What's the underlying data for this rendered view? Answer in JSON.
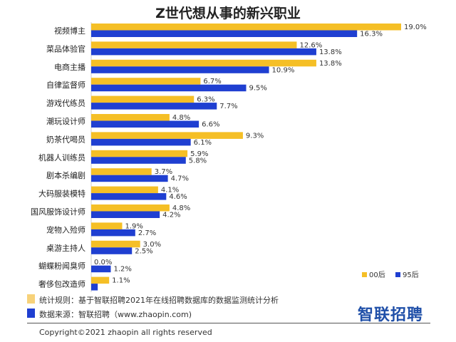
{
  "chart_data": {
    "type": "bar",
    "orientation": "horizontal",
    "title": "Z世代想从事的新兴职业",
    "categories": [
      "视频博主",
      "菜品体验官",
      "电商主播",
      "自律监督师",
      "游戏代练员",
      "潮玩设计师",
      "奶茶代喝员",
      "机器人训练员",
      "剧本杀编剧",
      "大码服装模特",
      "国风服饰设计师",
      "宠物入殓师",
      "桌游主持人",
      "蝴蝶粉闻臭师",
      "奢侈包改造师"
    ],
    "series": [
      {
        "name": "00后",
        "color": "#f5bf26",
        "values": [
          19.0,
          12.6,
          13.8,
          6.7,
          6.3,
          4.8,
          9.3,
          5.9,
          3.7,
          4.1,
          4.8,
          1.9,
          3.0,
          0.0,
          1.1
        ],
        "labels": [
          "19.0%",
          "12.6%",
          "13.8%",
          "6.7%",
          "6.3%",
          "4.8%",
          "9.3%",
          "5.9%",
          "3.7%",
          "4.1%",
          "4.8%",
          "1.9%",
          "3.0%",
          "0.0%",
          "1.1%"
        ]
      },
      {
        "name": "95后",
        "color": "#1f3fd1",
        "values": [
          16.3,
          13.8,
          10.9,
          9.5,
          7.7,
          6.6,
          6.1,
          5.8,
          4.7,
          4.6,
          4.2,
          2.7,
          2.5,
          1.2,
          0.4
        ],
        "labels": [
          "16.3%",
          "13.8%",
          "10.9%",
          "9.5%",
          "7.7%",
          "6.6%",
          "6.1%",
          "5.8%",
          "4.7%",
          "4.6%",
          "4.2%",
          "2.7%",
          "2.5%",
          "1.2%",
          ""
        ]
      }
    ],
    "xlim": [
      0,
      19
    ],
    "grid": false,
    "legend_position": "bottom-right"
  },
  "notes": {
    "rule": "统计规则：基于智联招聘2021年在线招聘数据库的数据监测统计分析",
    "source": "数据来源：智联招聘（www.zhaopin.com)"
  },
  "logo": "智联招聘",
  "copyright": "Copyright©2021 zhaopin  all rights reserved"
}
